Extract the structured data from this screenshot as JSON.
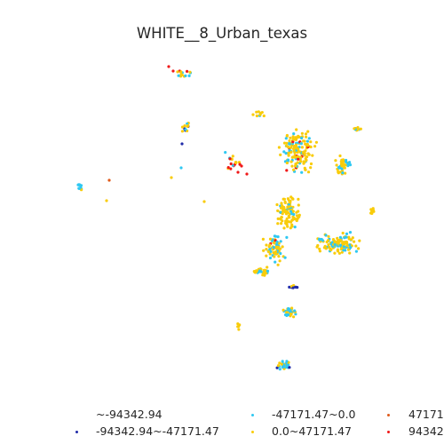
{
  "title": "WHITE__8_Urban_texas",
  "colors": {
    "c1": "#1f2aa8",
    "c2": "#2fc8f2",
    "c3": "#f9cc0a",
    "c4": "#e05a1a",
    "c5": "#f01818"
  },
  "legend": {
    "entries": [
      {
        "label": "~-94342.94",
        "color_key": "c0"
      },
      {
        "label": "-94342.94~-47171.47",
        "color_key": "c1"
      },
      {
        "label": "-47171.47~0.0",
        "color_key": "c2"
      },
      {
        "label": "0.0~47171.47",
        "color_key": "c3"
      },
      {
        "label": "47171",
        "color_key": "c4"
      },
      {
        "label": "94342",
        "color_key": "c5"
      }
    ]
  }
}
